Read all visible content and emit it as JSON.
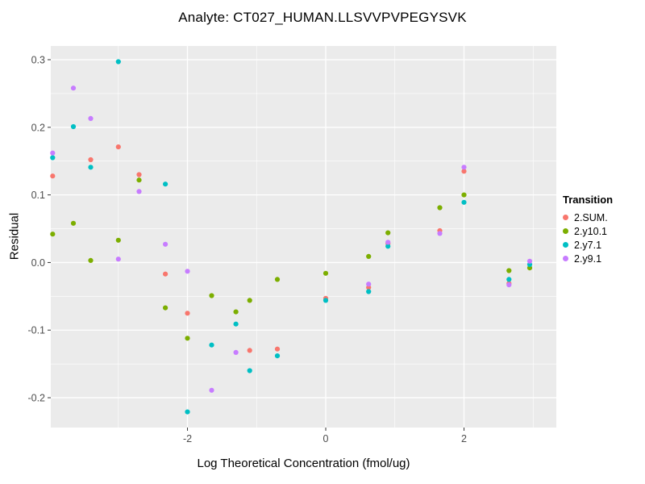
{
  "chart_data": {
    "type": "scatter",
    "title": "Analyte: CT027_HUMAN.LLSVVPVPEGYSVK",
    "xlabel": "Log Theoretical Concentration (fmol/ug)",
    "ylabel": "Residual",
    "legend_title": "Transition",
    "legend_position": "right",
    "grid": "on",
    "panel_bg": "#EBEBEB",
    "grid_color": "#FFFFFF",
    "tick_label_color": "#4D4D4D",
    "tick_mark_color": "#333333",
    "xlim": [
      -3.977,
      3.335
    ],
    "ylim": [
      -0.2441,
      0.3203
    ],
    "x_major_ticks": [
      -2,
      0,
      2
    ],
    "x_tick_labels": [
      "-2",
      "0",
      "2"
    ],
    "x_minor_ticks": [
      -3,
      -1,
      1,
      3
    ],
    "y_major_ticks": [
      0.3,
      0.2,
      0.1,
      0.0,
      -0.1,
      -0.2
    ],
    "y_tick_labels": [
      "0.3",
      "0.2",
      "0.1",
      "0.0",
      "-0.1",
      "-0.2"
    ],
    "y_minor_ticks": [
      0.25,
      0.15,
      0.05,
      -0.05,
      -0.15
    ],
    "series": [
      {
        "name": "2.SUM.",
        "color": "#F8766D",
        "points": [
          [
            -3.95,
            0.128
          ],
          [
            -3.4,
            0.152
          ],
          [
            -3.0,
            0.171
          ],
          [
            -2.7,
            0.13
          ],
          [
            -2.32,
            -0.017
          ],
          [
            -2.0,
            -0.075
          ],
          [
            -1.1,
            -0.13
          ],
          [
            -0.7,
            -0.128
          ],
          [
            0.0,
            -0.053
          ],
          [
            0.62,
            -0.037
          ],
          [
            0.9,
            0.028
          ],
          [
            1.65,
            0.047
          ],
          [
            2.0,
            0.135
          ],
          [
            2.65,
            -0.031
          ]
        ]
      },
      {
        "name": "2.y10.1",
        "color": "#7CAE00",
        "points": [
          [
            -3.95,
            0.042
          ],
          [
            -3.65,
            0.058
          ],
          [
            -3.4,
            0.003
          ],
          [
            -3.0,
            0.033
          ],
          [
            -2.7,
            0.122
          ],
          [
            -2.32,
            -0.067
          ],
          [
            -2.0,
            -0.112
          ],
          [
            -1.65,
            -0.049
          ],
          [
            -1.3,
            -0.073
          ],
          [
            -1.1,
            -0.056
          ],
          [
            -0.7,
            -0.025
          ],
          [
            0.0,
            -0.016
          ],
          [
            0.62,
            0.009
          ],
          [
            0.9,
            0.044
          ],
          [
            1.65,
            0.081
          ],
          [
            2.0,
            0.1
          ],
          [
            2.65,
            -0.012
          ],
          [
            2.95,
            -0.008
          ]
        ]
      },
      {
        "name": "2.y7.1",
        "color": "#00BFC4",
        "points": [
          [
            -3.95,
            0.155
          ],
          [
            -3.65,
            0.201
          ],
          [
            -3.4,
            0.141
          ],
          [
            -3.0,
            0.297
          ],
          [
            -2.32,
            0.116
          ],
          [
            -2.0,
            -0.221
          ],
          [
            -1.65,
            -0.122
          ],
          [
            -1.3,
            -0.091
          ],
          [
            -1.1,
            -0.16
          ],
          [
            -0.7,
            -0.138
          ],
          [
            0.0,
            -0.056
          ],
          [
            0.62,
            -0.043
          ],
          [
            0.9,
            0.024
          ],
          [
            2.0,
            0.089
          ],
          [
            2.65,
            -0.025
          ],
          [
            2.95,
            -0.003
          ]
        ]
      },
      {
        "name": "2.y9.1",
        "color": "#C77CFF",
        "points": [
          [
            -3.95,
            0.162
          ],
          [
            -3.65,
            0.258
          ],
          [
            -3.4,
            0.213
          ],
          [
            -3.0,
            0.005
          ],
          [
            -2.7,
            0.105
          ],
          [
            -2.32,
            0.027
          ],
          [
            -2.0,
            -0.013
          ],
          [
            -1.65,
            -0.189
          ],
          [
            -1.3,
            -0.133
          ],
          [
            0.62,
            -0.032
          ],
          [
            0.9,
            0.03
          ],
          [
            1.65,
            0.043
          ],
          [
            2.0,
            0.141
          ],
          [
            2.65,
            -0.033
          ],
          [
            2.95,
            0.002
          ]
        ]
      }
    ]
  }
}
